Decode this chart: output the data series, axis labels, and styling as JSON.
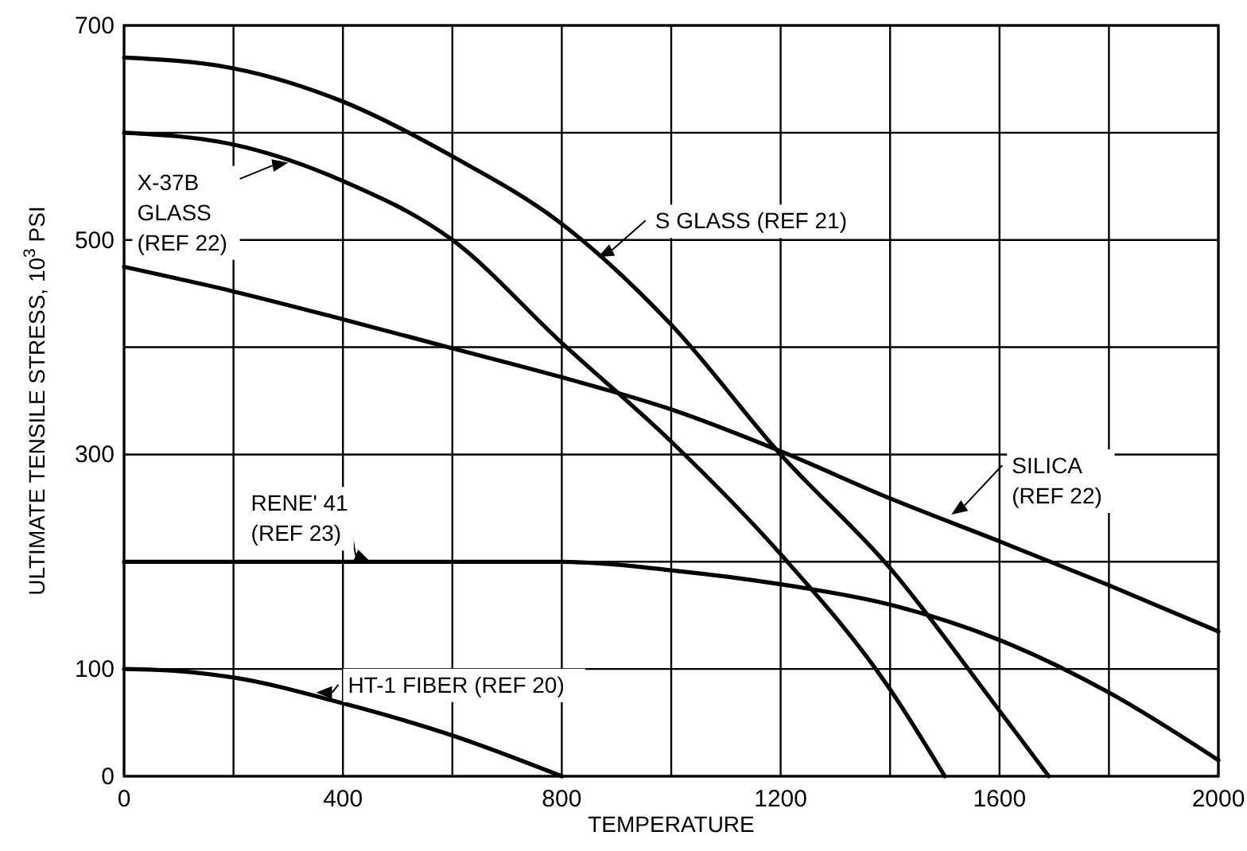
{
  "chart_data": {
    "type": "line",
    "xlabel": "TEMPERATURE",
    "ylabel": "ULTIMATE TENSILE STRESS, 10$^{3}$ PSI",
    "xlim": [
      0,
      2000
    ],
    "ylim": [
      0,
      700
    ],
    "xticks": [
      0,
      {
        "value": 200,
        "label": null
      },
      400,
      {
        "value": 600,
        "label": null
      },
      800,
      {
        "value": 1000,
        "label": null
      },
      1200,
      {
        "value": 1400,
        "label": null
      },
      1600,
      {
        "value": 1800,
        "label": null
      },
      2000
    ],
    "yticks": [
      0,
      100,
      {
        "value": 200,
        "label": null
      },
      300,
      {
        "value": 400,
        "label": null
      },
      500,
      {
        "value": 600,
        "label": null
      },
      700
    ],
    "grid": true,
    "marker": "none",
    "line_style": "solid",
    "series": [
      {
        "color": "#000000",
        "x": [
          0,
          200,
          400,
          600,
          800,
          1000,
          1200,
          1400,
          1600,
          1690
        ],
        "values": [
          670,
          660,
          629,
          578,
          515,
          421,
          300,
          194,
          61,
          0
        ]
      },
      {
        "color": "#000000",
        "x": [
          0,
          200,
          400,
          600,
          800,
          1000,
          1200,
          1400,
          1500
        ],
        "values": [
          600,
          589,
          555,
          500,
          404,
          312,
          207,
          81,
          0
        ]
      },
      {
        "color": "#000000",
        "x": [
          0,
          200,
          400,
          600,
          800,
          1000,
          1200,
          1400,
          1600,
          1800,
          2000
        ],
        "values": [
          475,
          452,
          426,
          399,
          372,
          342,
          303,
          259,
          219,
          178,
          135
        ]
      },
      {
        "color": "#000000",
        "x": [
          0,
          200,
          400,
          600,
          800,
          1000,
          1200,
          1400,
          1600,
          1800,
          2000
        ],
        "values": [
          200,
          200,
          200,
          200,
          200,
          192,
          179,
          160,
          127,
          78,
          15
        ]
      },
      {
        "color": "#000000",
        "x": [
          0,
          100,
          200,
          400,
          600,
          800
        ],
        "values": [
          100,
          98,
          92,
          68,
          38,
          0
        ]
      }
    ],
    "annotations": [
      {
        "text": "X-37B\nGLASS\n(REF 22)",
        "x": 300,
        "y": 572
      },
      {
        "text": "S GLASS (REF 21)",
        "x": 866,
        "y": 484
      },
      {
        "text": "SILICA\n(REF 22)",
        "x": 1512,
        "y": 244
      },
      {
        "text": "RENE' 41\n(REF 23)",
        "x": 450,
        "y": 200
      },
      {
        "text": "HT-1 FIBER (REF 20)",
        "x": 351,
        "y": 78
      }
    ]
  }
}
